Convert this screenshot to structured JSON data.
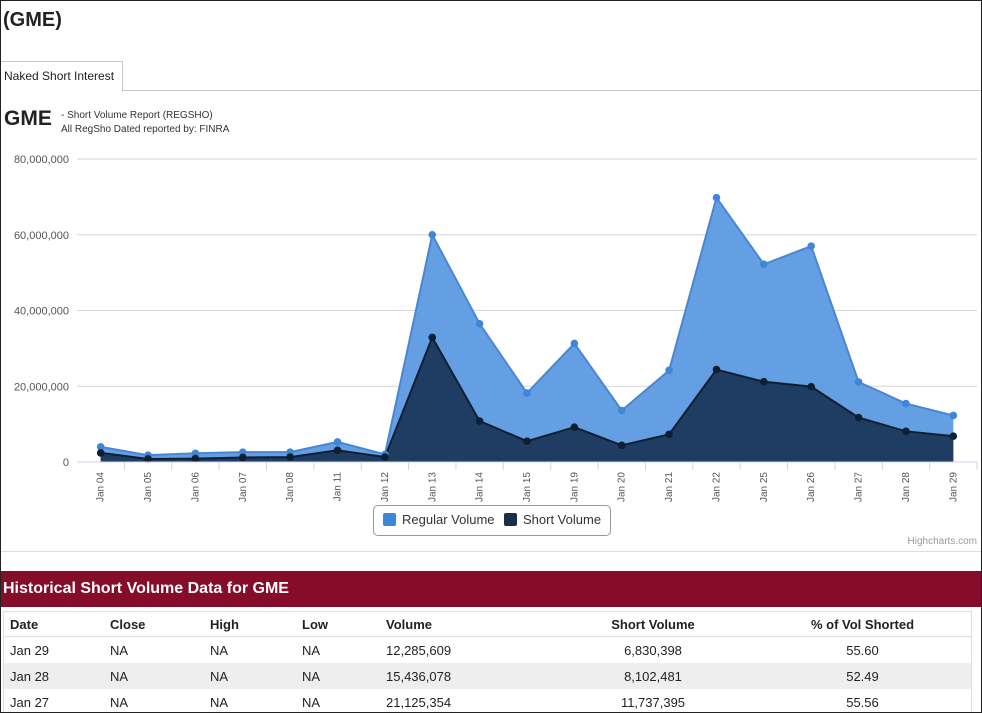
{
  "page": {
    "title": "(GME)"
  },
  "tabs": [
    {
      "label": "Naked Short Interest"
    }
  ],
  "chart_header": {
    "symbol": "GME",
    "subtitle": "- Short Volume Report  (REGSHO)",
    "source": "All RegSho Dated reported by: FINRA"
  },
  "credits": "Highcharts.com",
  "colors": {
    "regular": "#5b9ae0",
    "regular_line": "#4a86d2",
    "short": "#1e3a5f",
    "short_line": "#0f1f33",
    "table_header": "#850d2a"
  },
  "chart_data": {
    "type": "area",
    "categories": [
      "Jan 04",
      "Jan 05",
      "Jan 06",
      "Jan 07",
      "Jan 08",
      "Jan 11",
      "Jan 12",
      "Jan 13",
      "Jan 14",
      "Jan 15",
      "Jan 19",
      "Jan 20",
      "Jan 21",
      "Jan 22",
      "Jan 25",
      "Jan 26",
      "Jan 27",
      "Jan 28",
      "Jan 29"
    ],
    "series": [
      {
        "name": "Regular Volume",
        "values": [
          4000000,
          1800000,
          2300000,
          2600000,
          2600000,
          5300000,
          2000000,
          60000000,
          36500000,
          18200000,
          31300000,
          13600000,
          24200000,
          69800000,
          52200000,
          57000000,
          21125354,
          15436078,
          12285609
        ]
      },
      {
        "name": "Short Volume",
        "values": [
          2400000,
          800000,
          900000,
          1200000,
          1300000,
          3100000,
          1300000,
          32900000,
          10800000,
          5500000,
          9200000,
          4400000,
          7300000,
          24400000,
          21200000,
          19900000,
          11737395,
          8102481,
          6830398
        ]
      }
    ],
    "ylim": [
      0,
      80000000
    ],
    "yticks": [
      0,
      20000000,
      40000000,
      60000000,
      80000000
    ],
    "ytick_labels": [
      "0",
      "20,000,000",
      "40,000,000",
      "60,000,000",
      "80,000,000"
    ],
    "grid": true,
    "legend": "bottom-center"
  },
  "legend": [
    {
      "label": "Regular Volume"
    },
    {
      "label": "Short Volume"
    }
  ],
  "table": {
    "title": "Historical Short Volume Data for GME",
    "columns": [
      "Date",
      "Close",
      "High",
      "Low",
      "Volume",
      "Short Volume",
      "% of Vol Shorted"
    ],
    "rows": [
      [
        "Jan 29",
        "NA",
        "NA",
        "NA",
        "12,285,609",
        "6,830,398",
        "55.60"
      ],
      [
        "Jan 28",
        "NA",
        "NA",
        "NA",
        "15,436,078",
        "8,102,481",
        "52.49"
      ],
      [
        "Jan 27",
        "NA",
        "NA",
        "NA",
        "21,125,354",
        "11,737,395",
        "55.56"
      ]
    ]
  }
}
